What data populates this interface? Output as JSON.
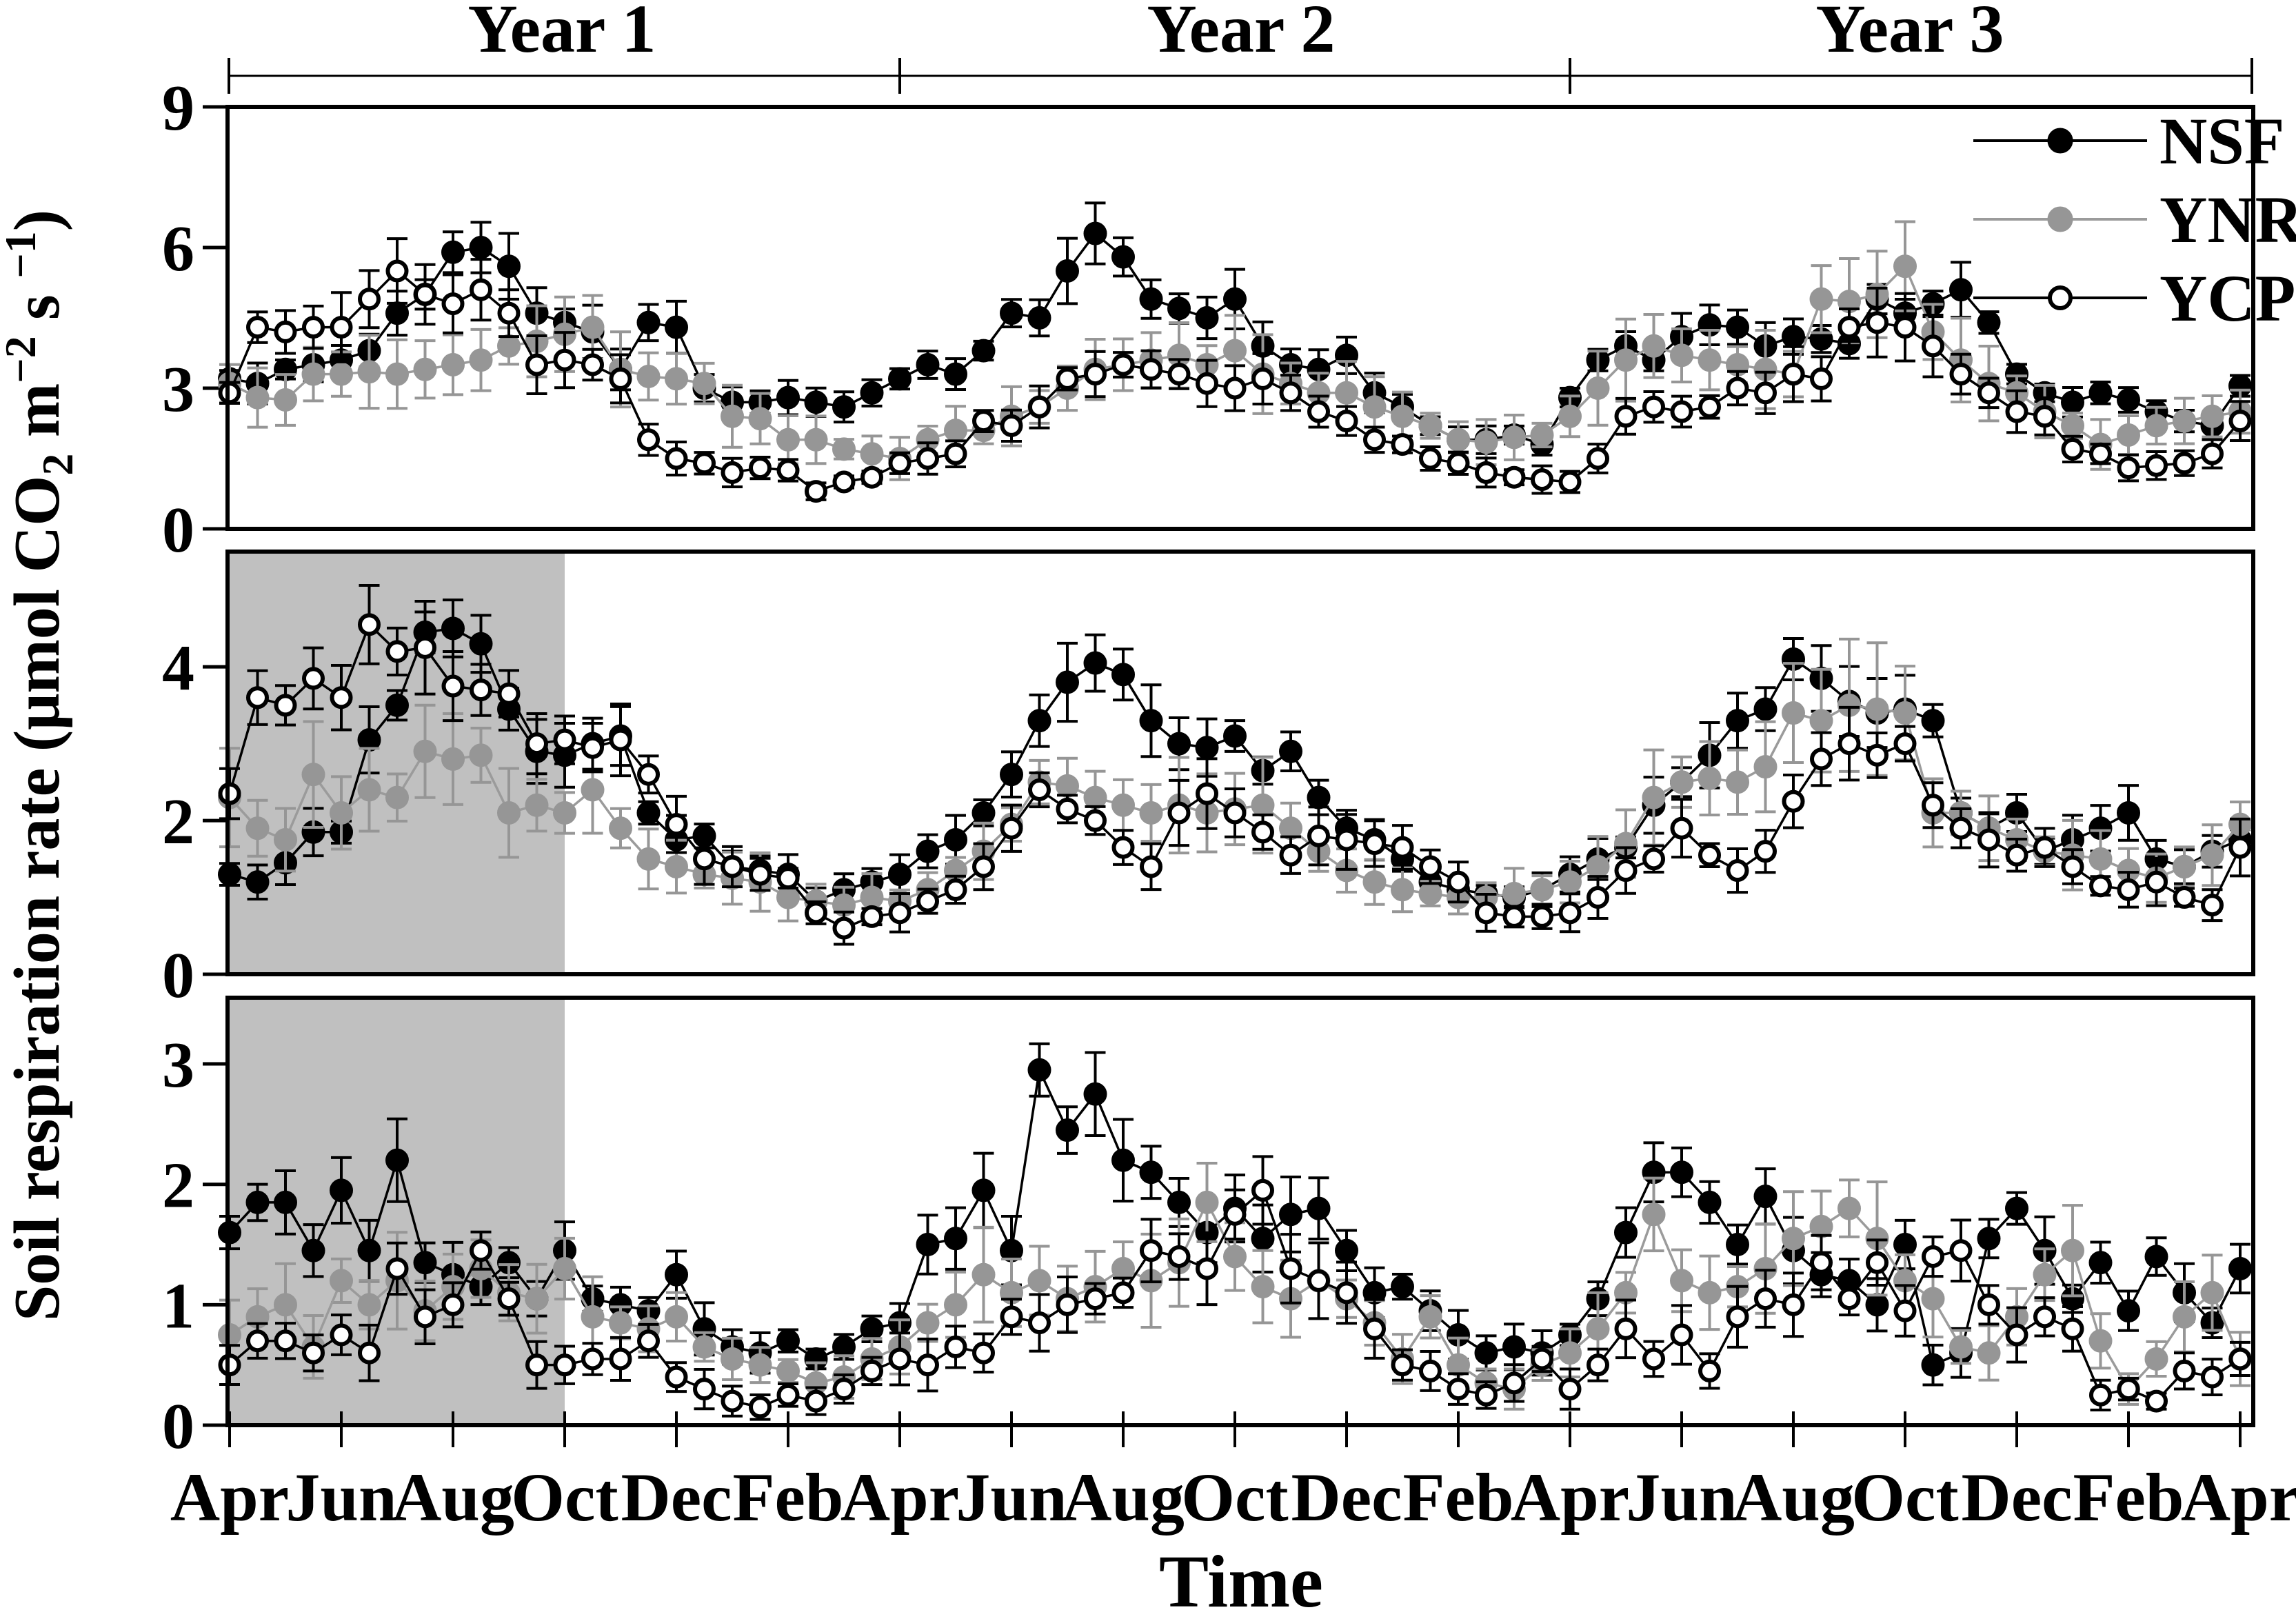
{
  "chart_data": {
    "type": "line",
    "title": "",
    "x_axis_label": "Time",
    "y_axis_label": "Soil respiration rate (μmol CO2 m−2 s−1)",
    "y_axis_label_segments": [
      {
        "text": "Soil respiration rate (μmol CO",
        "style": "normal"
      },
      {
        "text": "2",
        "style": "sub"
      },
      {
        "text": " m",
        "style": "normal"
      },
      {
        "text": "−2",
        "style": "sup"
      },
      {
        "text": " s ",
        "style": "normal"
      },
      {
        "text": "−1",
        "style": "sup"
      },
      {
        "text": ")",
        "style": "normal"
      }
    ],
    "year_headers": [
      "Year 1",
      "Year 2",
      "Year 3"
    ],
    "x_tick_labels": [
      "Apr",
      "Jun",
      "Aug",
      "Oct",
      "Dec",
      "Feb",
      "Apr",
      "Jun",
      "Aug",
      "Oct",
      "Dec",
      "Feb",
      "Apr",
      "Jun",
      "Aug",
      "Oct",
      "Dec",
      "Feb",
      "Apr"
    ],
    "x_months_per_point": 0.5,
    "x_range_months": [
      0,
      36
    ],
    "grid": false,
    "legend": {
      "position": "top-right",
      "items": [
        {
          "id": "NSF",
          "label": "NSF"
        },
        {
          "id": "YNR",
          "label": "YNR"
        },
        {
          "id": "YCP",
          "label": "YCP"
        }
      ]
    },
    "colors": {
      "nsf": "#000000",
      "ynr": "#969696",
      "ynr_line": "#9b9b9b",
      "ycp_fill": "#ffffff",
      "ycp_stroke": "#000000",
      "shade": "#c0c0c0",
      "frame": "#000000"
    },
    "series_styles": {
      "NSF": {
        "fill": "#000000",
        "stroke": "#000000",
        "line": "#000000",
        "err": "#000000",
        "marker": "filled-circle"
      },
      "YNR": {
        "fill": "#969696",
        "stroke": "#969696",
        "line": "#9b9b9b",
        "err": "#969696",
        "marker": "filled-circle"
      },
      "YCP": {
        "fill": "#ffffff",
        "stroke": "#000000",
        "line": "#000000",
        "err": "#000000",
        "marker": "open-circle"
      }
    },
    "err_fractions": {
      "NSF": 0.07,
      "YNR": 0.15,
      "YCP": 0.1
    },
    "panels": [
      {
        "name": "top",
        "ylim": [
          0,
          9
        ],
        "yticks": [
          0,
          3,
          6,
          9
        ],
        "shaded_region_months": null,
        "series": [
          {
            "name": "NSF",
            "values": [
              3.2,
              3.1,
              3.4,
              3.5,
              3.6,
              3.8,
              4.6,
              5.0,
              5.9,
              6.0,
              5.6,
              4.6,
              4.4,
              4.2,
              3.4,
              4.4,
              4.3,
              3.0,
              2.7,
              2.7,
              2.8,
              2.7,
              2.6,
              2.9,
              3.2,
              3.5,
              3.3,
              3.8,
              4.6,
              4.5,
              5.5,
              6.3,
              5.8,
              4.9,
              4.7,
              4.5,
              4.9,
              3.9,
              3.5,
              3.4,
              3.7,
              2.9,
              2.6,
              2.2,
              1.9,
              1.9,
              2.0,
              1.8,
              2.8,
              3.6,
              3.9,
              3.6,
              4.1,
              4.35,
              4.3,
              3.9,
              4.1,
              4.05,
              3.95,
              4.9,
              4.6,
              4.8,
              5.1,
              4.4,
              3.3,
              2.9,
              2.7,
              2.9,
              2.75,
              2.5,
              2.3,
              2.2,
              3.05
            ]
          },
          {
            "name": "YNR",
            "values": [
              3.1,
              2.8,
              2.75,
              3.3,
              3.3,
              3.35,
              3.3,
              3.4,
              3.5,
              3.6,
              3.9,
              4.0,
              4.15,
              4.3,
              3.4,
              3.25,
              3.2,
              3.1,
              2.4,
              2.35,
              1.9,
              1.9,
              1.7,
              1.6,
              1.5,
              1.9,
              2.1,
              2.1,
              2.4,
              2.6,
              3.0,
              3.4,
              3.5,
              3.6,
              3.7,
              3.5,
              3.8,
              3.3,
              3.1,
              2.9,
              2.9,
              2.6,
              2.4,
              2.2,
              1.9,
              1.85,
              1.95,
              2.0,
              2.4,
              3.0,
              3.6,
              3.9,
              3.7,
              3.6,
              3.5,
              3.4,
              3.3,
              4.9,
              4.85,
              5.0,
              5.6,
              4.2,
              3.6,
              3.1,
              2.9,
              2.5,
              2.2,
              1.8,
              2.0,
              2.2,
              2.3,
              2.4,
              2.5
            ]
          },
          {
            "name": "YCP",
            "values": [
              2.9,
              4.3,
              4.2,
              4.3,
              4.3,
              4.9,
              5.5,
              5.0,
              4.8,
              5.1,
              4.6,
              3.5,
              3.6,
              3.5,
              3.2,
              1.9,
              1.5,
              1.4,
              1.2,
              1.3,
              1.25,
              0.8,
              1.0,
              1.1,
              1.4,
              1.5,
              1.6,
              2.3,
              2.2,
              2.6,
              3.2,
              3.3,
              3.5,
              3.4,
              3.3,
              3.1,
              3.0,
              3.2,
              2.9,
              2.5,
              2.3,
              1.9,
              1.8,
              1.5,
              1.4,
              1.2,
              1.1,
              1.05,
              1.0,
              1.5,
              2.4,
              2.6,
              2.5,
              2.6,
              3.0,
              2.9,
              3.3,
              3.2,
              4.3,
              4.4,
              4.3,
              3.9,
              3.3,
              2.9,
              2.5,
              2.4,
              1.7,
              1.6,
              1.3,
              1.35,
              1.4,
              1.6,
              2.3
            ]
          }
        ]
      },
      {
        "name": "middle",
        "ylim": [
          0,
          5.5
        ],
        "yticks": [
          0,
          2,
          4
        ],
        "shaded_region_months": [
          0,
          6
        ],
        "series": [
          {
            "name": "NSF",
            "values": [
              1.3,
              1.2,
              1.45,
              1.85,
              1.85,
              3.05,
              3.5,
              4.45,
              4.5,
              4.3,
              3.45,
              2.9,
              2.85,
              3.0,
              3.1,
              2.1,
              1.75,
              1.8,
              1.4,
              1.35,
              1.3,
              0.95,
              1.1,
              1.2,
              1.3,
              1.6,
              1.75,
              2.1,
              2.6,
              3.3,
              3.8,
              4.05,
              3.9,
              3.3,
              3.0,
              2.95,
              3.1,
              2.65,
              2.9,
              2.3,
              1.9,
              1.75,
              1.5,
              1.2,
              1.1,
              1.05,
              1.0,
              1.1,
              1.3,
              1.5,
              1.65,
              2.2,
              2.5,
              2.85,
              3.3,
              3.45,
              4.1,
              3.85,
              3.55,
              3.4,
              3.45,
              3.3,
              2.1,
              1.9,
              2.1,
              1.6,
              1.75,
              1.9,
              2.1,
              1.5,
              1.4,
              1.6,
              1.75
            ]
          },
          {
            "name": "YNR",
            "values": [
              2.3,
              1.9,
              1.75,
              2.6,
              2.1,
              2.4,
              2.3,
              2.9,
              2.8,
              2.85,
              2.1,
              2.2,
              2.1,
              2.4,
              1.9,
              1.5,
              1.4,
              1.3,
              1.25,
              1.2,
              1.0,
              0.95,
              0.9,
              1.0,
              0.95,
              1.1,
              1.35,
              1.6,
              1.95,
              2.5,
              2.45,
              2.3,
              2.2,
              2.1,
              2.2,
              2.1,
              2.15,
              2.2,
              1.9,
              1.6,
              1.35,
              1.2,
              1.1,
              1.05,
              1.0,
              1.0,
              1.05,
              1.1,
              1.2,
              1.4,
              1.7,
              2.3,
              2.5,
              2.55,
              2.5,
              2.7,
              3.4,
              3.3,
              3.5,
              3.45,
              3.4,
              2.1,
              2.1,
              1.9,
              1.75,
              1.6,
              1.55,
              1.5,
              1.35,
              1.25,
              1.4,
              1.55,
              1.95
            ]
          },
          {
            "name": "YCP",
            "values": [
              2.35,
              3.6,
              3.5,
              3.85,
              3.6,
              4.55,
              4.2,
              4.25,
              3.75,
              3.7,
              3.65,
              3.0,
              3.05,
              2.95,
              3.05,
              2.6,
              1.95,
              1.5,
              1.4,
              1.3,
              1.25,
              0.8,
              0.6,
              0.75,
              0.8,
              0.95,
              1.1,
              1.4,
              1.9,
              2.4,
              2.15,
              2.0,
              1.65,
              1.4,
              2.1,
              2.35,
              2.1,
              1.85,
              1.55,
              1.8,
              1.75,
              1.7,
              1.65,
              1.4,
              1.2,
              0.8,
              0.75,
              0.75,
              0.8,
              1.0,
              1.35,
              1.5,
              1.9,
              1.55,
              1.35,
              1.6,
              2.25,
              2.8,
              3.0,
              2.85,
              3.0,
              2.2,
              1.9,
              1.75,
              1.55,
              1.65,
              1.4,
              1.15,
              1.1,
              1.2,
              1.0,
              0.9,
              1.65
            ]
          }
        ]
      },
      {
        "name": "bottom",
        "ylim": [
          0,
          3.55
        ],
        "yticks": [
          0,
          1,
          2,
          3
        ],
        "shaded_region_months": [
          0,
          6
        ],
        "series": [
          {
            "name": "NSF",
            "values": [
              1.6,
              1.85,
              1.85,
              1.45,
              1.95,
              1.45,
              2.2,
              1.35,
              1.25,
              1.15,
              1.35,
              1.05,
              1.45,
              1.05,
              1.0,
              0.95,
              1.25,
              0.8,
              0.65,
              0.6,
              0.7,
              0.55,
              0.65,
              0.8,
              0.85,
              1.5,
              1.55,
              1.95,
              1.45,
              2.95,
              2.45,
              2.75,
              2.2,
              2.1,
              1.85,
              1.6,
              1.8,
              1.55,
              1.75,
              1.8,
              1.45,
              1.1,
              1.15,
              0.95,
              0.75,
              0.6,
              0.65,
              0.6,
              0.75,
              1.05,
              1.6,
              2.1,
              2.1,
              1.85,
              1.5,
              1.9,
              1.45,
              1.25,
              1.2,
              1.0,
              1.5,
              0.5,
              0.6,
              1.55,
              1.8,
              1.45,
              1.05,
              1.35,
              0.95,
              1.4,
              1.1,
              0.85,
              1.3
            ]
          },
          {
            "name": "YNR",
            "values": [
              0.75,
              0.9,
              1.0,
              0.65,
              1.2,
              1.0,
              1.2,
              0.95,
              1.15,
              1.3,
              1.1,
              1.05,
              1.3,
              0.9,
              0.85,
              0.8,
              0.9,
              0.65,
              0.55,
              0.5,
              0.45,
              0.35,
              0.4,
              0.55,
              0.65,
              0.85,
              1.0,
              1.25,
              1.1,
              1.2,
              1.05,
              1.15,
              1.3,
              1.2,
              1.35,
              1.85,
              1.4,
              1.15,
              1.05,
              1.2,
              1.05,
              0.85,
              0.55,
              0.9,
              0.5,
              0.35,
              0.3,
              0.5,
              0.6,
              0.8,
              1.1,
              1.75,
              1.2,
              1.1,
              1.15,
              1.3,
              1.55,
              1.65,
              1.8,
              1.55,
              1.2,
              1.05,
              0.65,
              0.6,
              0.9,
              1.25,
              1.45,
              0.7,
              0.3,
              0.55,
              0.9,
              1.1,
              0.55
            ]
          },
          {
            "name": "YCP",
            "values": [
              0.5,
              0.7,
              0.7,
              0.6,
              0.75,
              0.6,
              1.3,
              0.9,
              1.0,
              1.45,
              1.05,
              0.5,
              0.5,
              0.55,
              0.55,
              0.7,
              0.4,
              0.3,
              0.2,
              0.15,
              0.25,
              0.2,
              0.3,
              0.45,
              0.55,
              0.5,
              0.65,
              0.6,
              0.9,
              0.85,
              1.0,
              1.05,
              1.1,
              1.45,
              1.4,
              1.3,
              1.75,
              1.95,
              1.3,
              1.2,
              1.1,
              0.8,
              0.5,
              0.45,
              0.3,
              0.25,
              0.35,
              0.55,
              0.3,
              0.5,
              0.8,
              0.55,
              0.75,
              0.45,
              0.9,
              1.05,
              1.0,
              1.35,
              1.05,
              1.35,
              0.95,
              1.4,
              1.45,
              1.0,
              0.75,
              0.9,
              0.8,
              0.25,
              0.3,
              0.2,
              0.45,
              0.4,
              0.55
            ]
          }
        ]
      }
    ]
  }
}
